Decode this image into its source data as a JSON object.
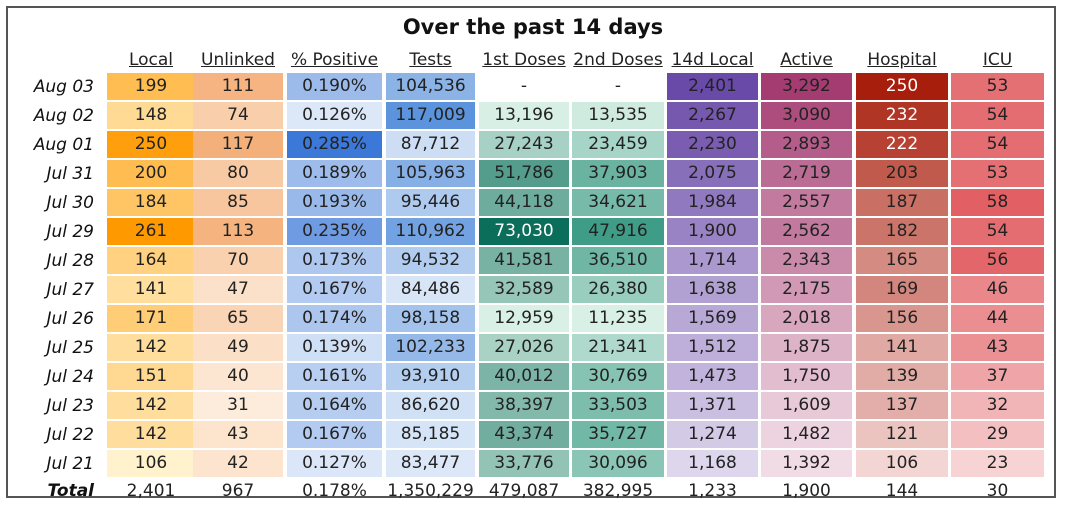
{
  "chart_data": {
    "type": "table",
    "title": "Over the past 14 days",
    "columns": [
      "Local",
      "Unlinked",
      "% Positive",
      "Tests",
      "1st Doses",
      "2nd Doses",
      "14d Local",
      "Active",
      "Hospital",
      "ICU"
    ],
    "rows": [
      {
        "date": "Aug 03",
        "values": [
          "199",
          "111",
          "0.190%",
          "104,536",
          "-",
          "-",
          "2,401",
          "3,292",
          "250",
          "53"
        ]
      },
      {
        "date": "Aug 02",
        "values": [
          "148",
          "74",
          "0.126%",
          "117,009",
          "13,196",
          "13,535",
          "2,267",
          "3,090",
          "232",
          "54"
        ]
      },
      {
        "date": "Aug 01",
        "values": [
          "250",
          "117",
          "0.285%",
          "87,712",
          "27,243",
          "23,459",
          "2,230",
          "2,893",
          "222",
          "54"
        ]
      },
      {
        "date": "Jul 31",
        "values": [
          "200",
          "80",
          "0.189%",
          "105,963",
          "51,786",
          "37,903",
          "2,075",
          "2,719",
          "203",
          "53"
        ]
      },
      {
        "date": "Jul 30",
        "values": [
          "184",
          "85",
          "0.193%",
          "95,446",
          "44,118",
          "34,621",
          "1,984",
          "2,557",
          "187",
          "58"
        ]
      },
      {
        "date": "Jul 29",
        "values": [
          "261",
          "113",
          "0.235%",
          "110,962",
          "73,030",
          "47,916",
          "1,900",
          "2,562",
          "182",
          "54"
        ]
      },
      {
        "date": "Jul 28",
        "values": [
          "164",
          "70",
          "0.173%",
          "94,532",
          "41,581",
          "36,510",
          "1,714",
          "2,343",
          "165",
          "56"
        ]
      },
      {
        "date": "Jul 27",
        "values": [
          "141",
          "47",
          "0.167%",
          "84,486",
          "32,589",
          "26,380",
          "1,638",
          "2,175",
          "169",
          "46"
        ]
      },
      {
        "date": "Jul 26",
        "values": [
          "171",
          "65",
          "0.174%",
          "98,158",
          "12,959",
          "11,235",
          "1,569",
          "2,018",
          "156",
          "44"
        ]
      },
      {
        "date": "Jul 25",
        "values": [
          "142",
          "49",
          "0.139%",
          "102,233",
          "27,026",
          "21,341",
          "1,512",
          "1,875",
          "141",
          "43"
        ]
      },
      {
        "date": "Jul 24",
        "values": [
          "151",
          "40",
          "0.161%",
          "93,910",
          "40,012",
          "30,769",
          "1,473",
          "1,750",
          "139",
          "37"
        ]
      },
      {
        "date": "Jul 23",
        "values": [
          "142",
          "31",
          "0.164%",
          "86,620",
          "38,397",
          "33,503",
          "1,371",
          "1,609",
          "137",
          "32"
        ]
      },
      {
        "date": "Jul 22",
        "values": [
          "142",
          "43",
          "0.167%",
          "85,185",
          "43,374",
          "35,727",
          "1,274",
          "1,482",
          "121",
          "29"
        ]
      },
      {
        "date": "Jul 21",
        "values": [
          "106",
          "42",
          "0.127%",
          "83,477",
          "33,776",
          "30,096",
          "1,168",
          "1,392",
          "106",
          "23"
        ]
      }
    ],
    "totals": {
      "label": "Total",
      "values": [
        "2,401",
        "967",
        "0.178%",
        "1,350,229",
        "479,087",
        "382,995",
        "1,233",
        "1,900",
        "144",
        "30"
      ]
    },
    "column_colors": [
      {
        "low": "#fff2cc",
        "high": "#ff9900"
      },
      {
        "low": "#fdecdb",
        "high": "#f4b07a"
      },
      {
        "low": "#dce8f8",
        "high": "#3c78d8"
      },
      {
        "low": "#dce8f8",
        "high": "#5b93dc"
      },
      {
        "low": "#d9f0e6",
        "high": "#0b6e5a"
      },
      {
        "low": "#d9f0e6",
        "high": "#3f9c86"
      },
      {
        "low": "#ddd6ec",
        "high": "#6a4aa8"
      },
      {
        "low": "#f1dbe4",
        "high": "#a43c72"
      },
      {
        "low": "#f3d6d4",
        "high": "#a81e0c"
      },
      {
        "low": "#f7d3d4",
        "high": "#e26064"
      }
    ]
  }
}
